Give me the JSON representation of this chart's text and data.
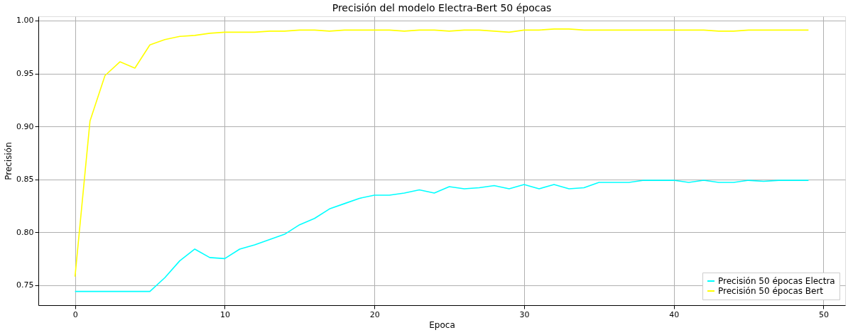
{
  "chart_data": {
    "type": "line",
    "title": "Precisión del modelo Electra-Bert 50 épocas",
    "xlabel": "Epoca",
    "ylabel": "Precisión",
    "x": [
      0,
      1,
      2,
      3,
      4,
      5,
      6,
      7,
      8,
      9,
      10,
      11,
      12,
      13,
      14,
      15,
      16,
      17,
      18,
      19,
      20,
      21,
      22,
      23,
      24,
      25,
      26,
      27,
      28,
      29,
      30,
      31,
      32,
      33,
      34,
      35,
      36,
      37,
      38,
      39,
      40,
      41,
      42,
      43,
      44,
      45,
      46,
      47,
      48,
      49
    ],
    "series": [
      {
        "name": "Precisión 50 épocas Electra",
        "color": "#00ffff",
        "values": [
          0.744,
          0.744,
          0.744,
          0.744,
          0.744,
          0.744,
          0.757,
          0.773,
          0.784,
          0.776,
          0.775,
          0.784,
          0.788,
          0.793,
          0.798,
          0.807,
          0.813,
          0.822,
          0.827,
          0.832,
          0.835,
          0.835,
          0.837,
          0.84,
          0.837,
          0.843,
          0.841,
          0.842,
          0.844,
          0.841,
          0.845,
          0.841,
          0.845,
          0.841,
          0.842,
          0.847,
          0.847,
          0.847,
          0.849,
          0.849,
          0.849,
          0.847,
          0.849,
          0.847,
          0.847,
          0.849,
          0.848,
          0.849,
          0.849,
          0.849
        ]
      },
      {
        "name": "Precisión 50 épocas Bert",
        "color": "#ffff00",
        "values": [
          0.758,
          0.905,
          0.948,
          0.961,
          0.955,
          0.977,
          0.982,
          0.985,
          0.986,
          0.988,
          0.989,
          0.989,
          0.989,
          0.99,
          0.99,
          0.991,
          0.991,
          0.99,
          0.991,
          0.991,
          0.991,
          0.991,
          0.99,
          0.991,
          0.991,
          0.99,
          0.991,
          0.991,
          0.99,
          0.989,
          0.991,
          0.991,
          0.992,
          0.992,
          0.991,
          0.991,
          0.991,
          0.991,
          0.991,
          0.991,
          0.991,
          0.991,
          0.991,
          0.99,
          0.99,
          0.991,
          0.991,
          0.991,
          0.991,
          0.991
        ]
      }
    ],
    "xlim": [
      -2.45,
      51.45
    ],
    "xticks": [
      0,
      10,
      20,
      30,
      40,
      50
    ],
    "ylim": [
      0.731,
      1.004
    ],
    "yticks": [
      {
        "value": 0.75,
        "label": "0.75"
      },
      {
        "value": 0.8,
        "label": "0.80"
      },
      {
        "value": 0.85,
        "label": "0.85"
      },
      {
        "value": 0.9,
        "label": "0.90"
      },
      {
        "value": 0.95,
        "label": "0.95"
      },
      {
        "value": 1.0,
        "label": "1.00"
      }
    ],
    "grid": true,
    "legend": "bottom right",
    "marker": "none",
    "line_style": "solid"
  }
}
